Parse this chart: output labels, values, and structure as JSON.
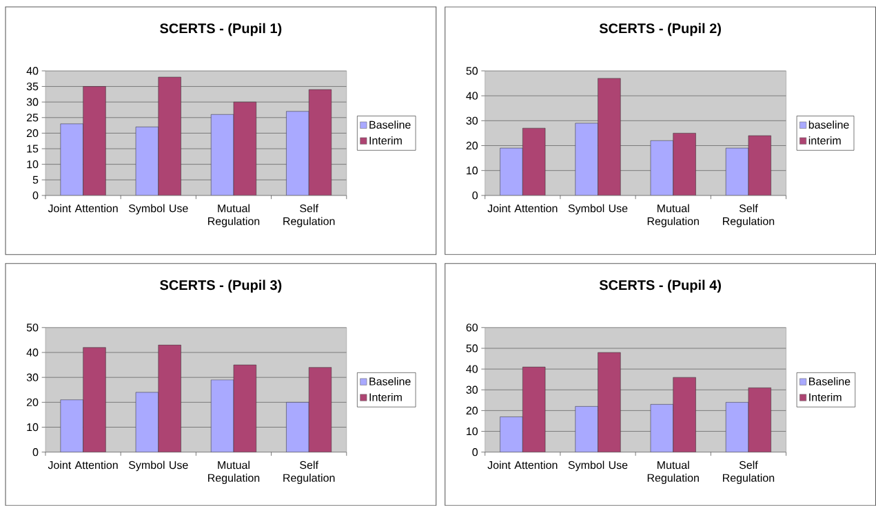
{
  "chart_data": [
    {
      "type": "bar",
      "title": "SCERTS - (Pupil 1)",
      "categories": [
        "Joint Attention",
        "Symbol Use",
        "Mutual Regulation",
        "Self Regulation"
      ],
      "series": [
        {
          "name": "Baseline",
          "color": "#a9a9ff",
          "values": [
            23,
            22,
            26,
            27
          ]
        },
        {
          "name": "Interim",
          "color": "#ad4472",
          "values": [
            35,
            38,
            30,
            34
          ]
        }
      ],
      "ylim": [
        0,
        40
      ],
      "yticks": [
        0,
        5,
        10,
        15,
        20,
        25,
        30,
        35,
        40
      ],
      "grid": "y",
      "legend": "right"
    },
    {
      "type": "bar",
      "title": "SCERTS - (Pupil 2)",
      "categories": [
        "Joint Attention",
        "Symbol Use",
        "Mutual Regulation",
        "Self Regulation"
      ],
      "series": [
        {
          "name": "baseline",
          "color": "#a9a9ff",
          "values": [
            19,
            29,
            22,
            19
          ]
        },
        {
          "name": "interim",
          "color": "#ad4472",
          "values": [
            27,
            47,
            25,
            24
          ]
        }
      ],
      "ylim": [
        0,
        50
      ],
      "yticks": [
        0,
        10,
        20,
        30,
        40,
        50
      ],
      "grid": "y",
      "legend": "right"
    },
    {
      "type": "bar",
      "title": "SCERTS - (Pupil 3)",
      "categories": [
        "Joint Attention",
        "Symbol Use",
        "Mutual Regulation",
        "Self Regulation"
      ],
      "series": [
        {
          "name": "Baseline",
          "color": "#a9a9ff",
          "values": [
            21,
            24,
            29,
            20
          ]
        },
        {
          "name": "Interim",
          "color": "#ad4472",
          "values": [
            42,
            43,
            35,
            34
          ]
        }
      ],
      "ylim": [
        0,
        50
      ],
      "yticks": [
        0,
        10,
        20,
        30,
        40,
        50
      ],
      "grid": "y",
      "legend": "right"
    },
    {
      "type": "bar",
      "title": "SCERTS - (Pupil 4)",
      "categories": [
        "Joint Attention",
        "Symbol Use",
        "Mutual Regulation",
        "Self Regulation"
      ],
      "series": [
        {
          "name": "Baseline",
          "color": "#a9a9ff",
          "values": [
            17,
            22,
            23,
            24
          ]
        },
        {
          "name": "Interim",
          "color": "#ad4472",
          "values": [
            41,
            48,
            36,
            31
          ]
        }
      ],
      "ylim": [
        0,
        60
      ],
      "yticks": [
        0,
        10,
        20,
        30,
        40,
        50,
        60
      ],
      "grid": "y",
      "legend": "right"
    }
  ]
}
